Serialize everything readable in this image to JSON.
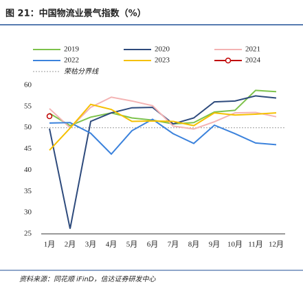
{
  "chart_data": {
    "type": "line",
    "title": "图 21：中国物流业景气指数（%）",
    "source": "资料来源：同花顺 iFinD，信达证券研发中心",
    "categories": [
      "1月",
      "2月",
      "3月",
      "4月",
      "5月",
      "6月",
      "7月",
      "8月",
      "9月",
      "10月",
      "11月",
      "12月"
    ],
    "series": [
      {
        "name": "2019",
        "color": "#7dc24b",
        "values": [
          53.4,
          50.5,
          52.5,
          53.5,
          52.3,
          51.8,
          50.9,
          51.2,
          53.7,
          54.1,
          58.8,
          58.5
        ]
      },
      {
        "name": "2020",
        "color": "#2d4a7c",
        "values": [
          49.8,
          26.2,
          51.5,
          53.5,
          54.7,
          54.8,
          50.9,
          52.3,
          56.1,
          56.3,
          57.5,
          57.0
        ]
      },
      {
        "name": "2021",
        "color": "#f4b3b3",
        "values": [
          54.5,
          50.0,
          54.8,
          57.2,
          56.3,
          55.2,
          50.4,
          49.7,
          51.4,
          53.5,
          53.6,
          52.6
        ]
      },
      {
        "name": "2022",
        "color": "#3b82dc",
        "values": [
          51.1,
          51.2,
          48.7,
          43.8,
          49.3,
          52.0,
          48.6,
          46.3,
          50.6,
          48.6,
          46.4,
          46.0
        ]
      },
      {
        "name": "2023",
        "color": "#f5c000",
        "values": [
          44.7,
          49.9,
          55.5,
          54.3,
          51.5,
          51.6,
          51.5,
          50.5,
          53.5,
          53.0,
          53.2,
          53.5
        ]
      },
      {
        "name": "2024",
        "color": "#c00000",
        "marker": "circle",
        "values": [
          52.7,
          null,
          null,
          null,
          null,
          null,
          null,
          null,
          null,
          null,
          null,
          null
        ]
      }
    ],
    "threshold": {
      "label": "荣枯分界线",
      "value": 50,
      "color": "#999999"
    },
    "ylim": [
      25,
      60
    ],
    "yticks": [
      25,
      30,
      35,
      40,
      45,
      50,
      55,
      60
    ],
    "grid": false
  }
}
